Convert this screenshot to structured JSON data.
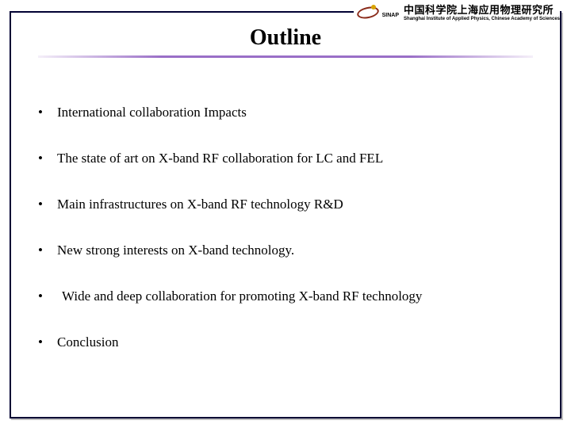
{
  "header": {
    "institution_cn": "中国科学院上海应用物理研究所",
    "institution_en": "Shanghai Institute of Applied Physics, Chinese Academy of Sciences",
    "acronym": "SINAP"
  },
  "title": "Outline",
  "title_underline_color": "#9a6fc7",
  "frame_color": "#000033",
  "bullets": [
    {
      "text": "International collaboration Impacts",
      "indent": false
    },
    {
      "text": "The state of art on X-band RF collaboration for LC and FEL",
      "indent": false
    },
    {
      "text": "Main infrastructures on X-band RF technology R&D",
      "indent": false
    },
    {
      "text": "New strong interests on X-band technology.",
      "indent": false
    },
    {
      "text": "Wide and deep collaboration for promoting X-band RF technology",
      "indent": true
    },
    {
      "text": "Conclusion",
      "indent": false
    }
  ],
  "bullet_fontsize": 17,
  "title_fontsize": 28,
  "background_color": "#ffffff"
}
